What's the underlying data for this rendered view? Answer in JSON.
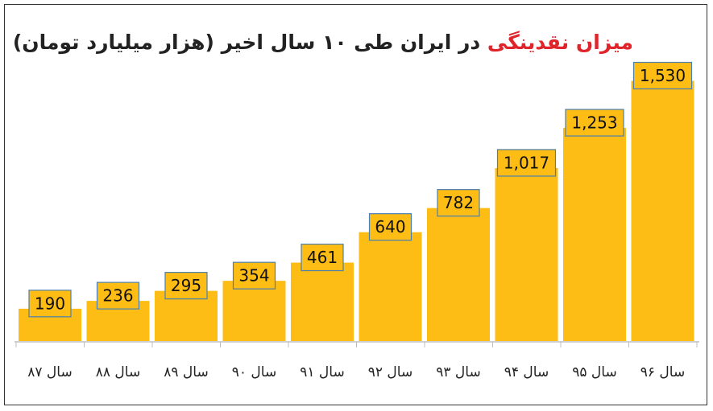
{
  "chart_data": {
    "type": "bar",
    "title_highlight": "میزان نقدینگی",
    "title_rest": "در ایران طی ۱۰ سال اخیر (هزار میلیارد تومان)",
    "categories": [
      "سال ۸۷",
      "سال ۸۸",
      "سال ۸۹",
      "سال ۹۰",
      "سال ۹۱",
      "سال ۹۲",
      "سال ۹۳",
      "سال ۹۴",
      "سال ۹۵",
      "سال ۹۶"
    ],
    "values": [
      190,
      236,
      295,
      354,
      461,
      640,
      782,
      1017,
      1253,
      1530
    ],
    "value_labels": [
      "190",
      "236",
      "295",
      "354",
      "461",
      "640",
      "782",
      "1,017",
      "1,253",
      "1,530"
    ],
    "ylim": [
      0,
      1650
    ],
    "grid": false,
    "legend": "none",
    "colors": {
      "bar": "#fdbd14",
      "label_border": "#4a7fb0",
      "title_highlight": "#e0242b",
      "title_text": "#222222",
      "axis": "#bfbfbf"
    }
  }
}
